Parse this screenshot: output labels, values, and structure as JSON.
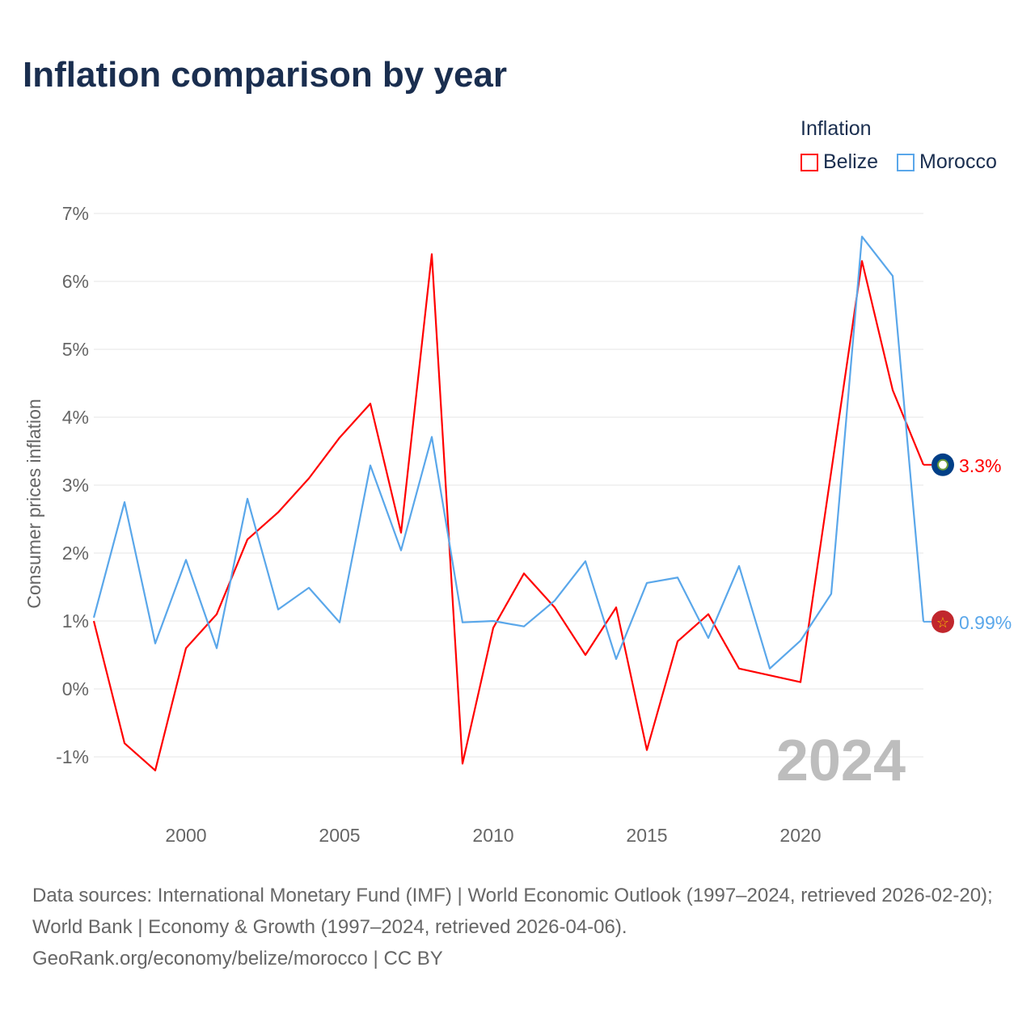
{
  "chart_data": {
    "type": "line",
    "title": "Inflation comparison by year",
    "ylabel": "Consumer prices inflation",
    "xlabel": "",
    "x": [
      1997,
      1998,
      1999,
      2000,
      2001,
      2002,
      2003,
      2004,
      2005,
      2006,
      2007,
      2008,
      2009,
      2010,
      2011,
      2012,
      2013,
      2014,
      2015,
      2016,
      2017,
      2018,
      2019,
      2020,
      2021,
      2022,
      2023,
      2024
    ],
    "series": [
      {
        "name": "Belize",
        "color": "#ff0000",
        "values": [
          1.0,
          -0.8,
          -1.2,
          0.6,
          1.1,
          2.2,
          2.6,
          3.1,
          3.7,
          4.2,
          2.3,
          6.4,
          -1.1,
          0.9,
          1.7,
          1.2,
          0.5,
          1.2,
          -0.9,
          0.7,
          1.1,
          0.3,
          0.2,
          0.1,
          3.2,
          6.3,
          4.4,
          3.3
        ],
        "end_label": "3.3%"
      },
      {
        "name": "Morocco",
        "color": "#5aa7ea",
        "values": [
          1.05,
          2.75,
          0.67,
          1.9,
          0.6,
          2.8,
          1.17,
          1.49,
          0.98,
          3.29,
          2.04,
          3.71,
          0.98,
          1.0,
          0.92,
          1.3,
          1.88,
          0.44,
          1.56,
          1.64,
          0.75,
          1.81,
          0.3,
          0.71,
          1.4,
          6.66,
          6.08,
          0.99
        ],
        "end_label": "0.99%"
      }
    ],
    "ylim": [
      -1.5,
      7
    ],
    "yticks": [
      -1,
      0,
      1,
      2,
      3,
      4,
      5,
      6,
      7
    ],
    "ytick_labels": [
      "-1%",
      "0%",
      "1%",
      "2%",
      "3%",
      "4%",
      "5%",
      "6%",
      "7%"
    ],
    "xticks": [
      2000,
      2005,
      2010,
      2015,
      2020
    ],
    "xtick_labels": [
      "2000",
      "2005",
      "2010",
      "2015",
      "2020"
    ],
    "legend_title": "Inflation",
    "legend_position": "top-right",
    "grid": true,
    "watermark_year": "2024"
  },
  "footer": {
    "sources": "Data sources: International Monetary Fund (IMF) | World Economic Outlook (1997–2024, retrieved 2026-02-20); World Bank | Economy & Growth (1997–2024, retrieved 2026-04-06).",
    "credit": "GeoRank.org/economy/belize/morocco | CC BY"
  }
}
